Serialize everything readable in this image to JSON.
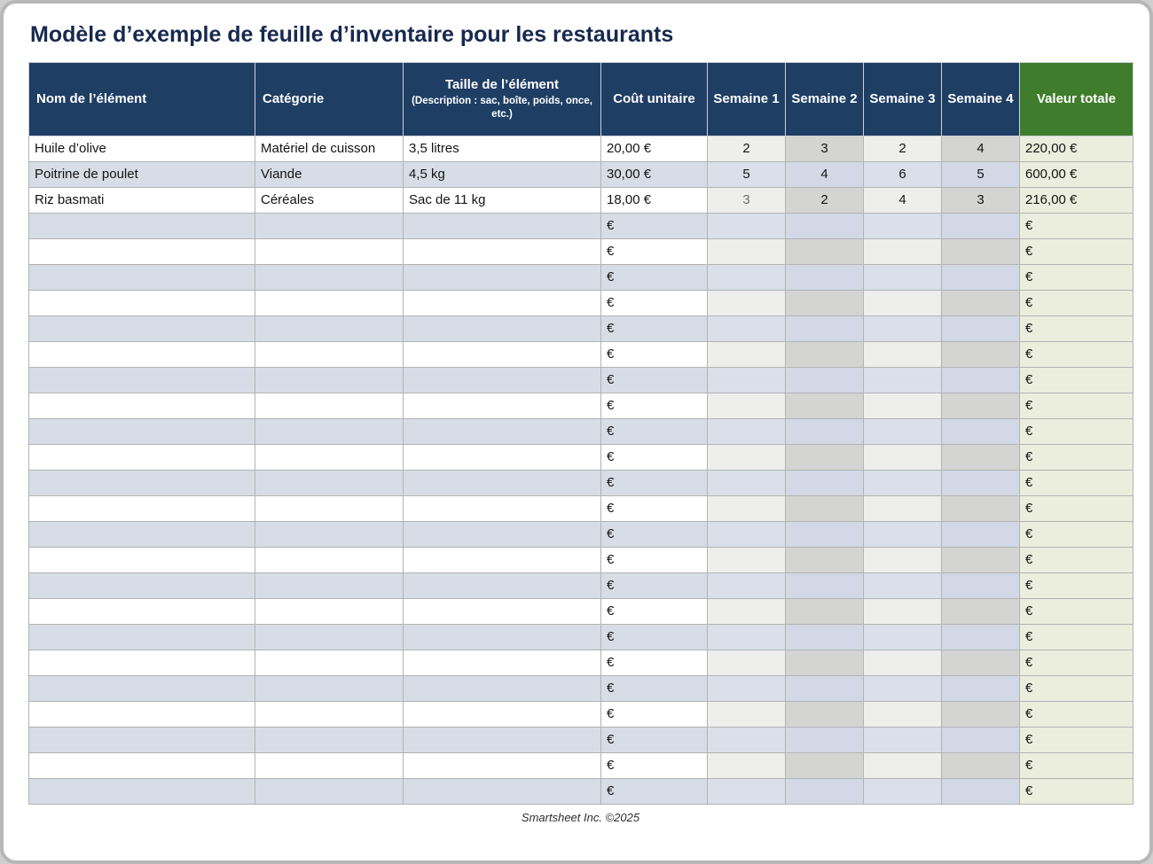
{
  "title": "Modèle d’exemple de feuille d’inventaire pour les restaurants",
  "footer": "Smartsheet Inc. ©2025",
  "colors": {
    "header_navy": "#1e3e64",
    "header_green": "#3f7d2c",
    "alt_row_blue": "#d7dde7",
    "week_col_light": "#eeeeec",
    "week_col_dark": "#d4d4d2",
    "value_col_bg": "#ebeedd",
    "title_text": "#17294e"
  },
  "table": {
    "columns": [
      {
        "label": "Nom de l’élément"
      },
      {
        "label": "Catégorie"
      },
      {
        "label": "Taille de l’élément",
        "sublabel": "(Description : sac, boîte, poids, once, etc.)"
      },
      {
        "label": "Coût unitaire"
      },
      {
        "label": "Semaine 1"
      },
      {
        "label": "Semaine 2"
      },
      {
        "label": "Semaine 3"
      },
      {
        "label": "Semaine 4"
      },
      {
        "label": "Valeur totale"
      }
    ],
    "rows": [
      {
        "name": "Huile d’olive",
        "category": "Matériel de cuisson",
        "size": "3,5 litres",
        "unit_cost": "20,00 €",
        "weeks": [
          "2",
          "3",
          "2",
          "4"
        ],
        "total": "220,00 €"
      },
      {
        "name": "Poitrine de poulet",
        "category": "Viande",
        "size": "4,5 kg",
        "unit_cost": "30,00 €",
        "weeks": [
          "5",
          "4",
          "6",
          "5"
        ],
        "total": "600,00 €"
      },
      {
        "name": "Riz basmati",
        "category": "Céréales",
        "size": "Sac de 11 kg",
        "unit_cost": "18,00 €",
        "weeks": [
          "3",
          "2",
          "4",
          "3"
        ],
        "total": "216,00 €"
      }
    ],
    "muted_cell": {
      "row": 2,
      "week": 0
    },
    "empty_rows": {
      "count": 23,
      "unit_cost": "€",
      "total": "€"
    }
  }
}
